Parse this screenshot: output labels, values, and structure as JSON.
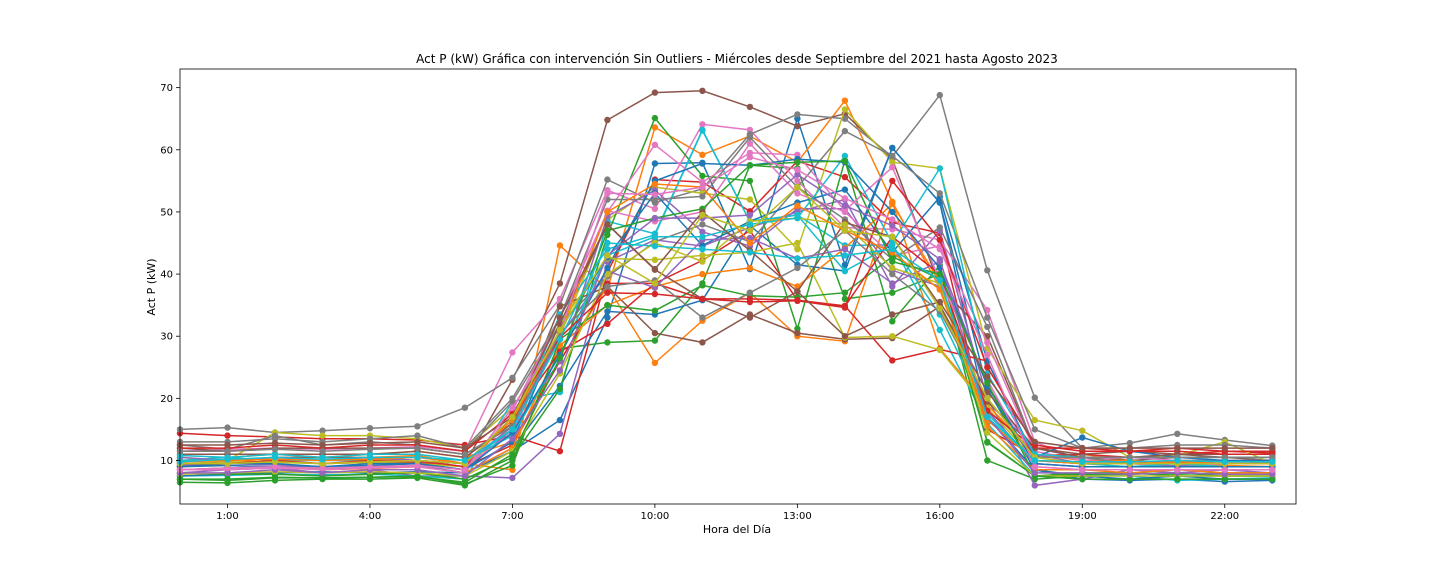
{
  "chart_data": {
    "type": "line",
    "title": "Act P (kW) Gráfica con intervención Sin Outliers - Miércoles desde Septiembre del 2021 hasta Agosto 2023",
    "xlabel": "Hora del Día",
    "ylabel": "Act P (kW)",
    "x": [
      0,
      1,
      2,
      3,
      4,
      5,
      6,
      7,
      8,
      9,
      10,
      11,
      12,
      13,
      14,
      15,
      16,
      17,
      18,
      19,
      20,
      21,
      22,
      23
    ],
    "xlim": [
      0,
      23.5
    ],
    "ylim": [
      3,
      73
    ],
    "x_ticks": [
      1,
      4,
      7,
      10,
      13,
      16,
      19,
      22
    ],
    "x_tick_labels": [
      "1:00",
      "4:00",
      "7:00",
      "10:00",
      "13:00",
      "16:00",
      "19:00",
      "22:00"
    ],
    "y_ticks": [
      10,
      20,
      30,
      40,
      50,
      60,
      70
    ],
    "y_tick_labels": [
      "10",
      "20",
      "30",
      "40",
      "50",
      "60",
      "70"
    ],
    "grid": false,
    "legend": "none",
    "marker": "circle",
    "palette": [
      "#1f77b4",
      "#ff7f0e",
      "#2ca02c",
      "#d62728",
      "#9467bd",
      "#8c564b",
      "#e377c2",
      "#7f7f7f",
      "#bcbd22",
      "#17becf"
    ],
    "series": [
      {
        "values": [
          8.5,
          8.8,
          9.0,
          8.7,
          8.9,
          9.2,
          8.0,
          11.5,
          16.5,
          33.0,
          57.8,
          57.9,
          40.8,
          65.0,
          41.5,
          60.3,
          51.5,
          17.0,
          8.5,
          7.0,
          6.8,
          7.0,
          6.6,
          6.8
        ]
      },
      {
        "values": [
          9.0,
          9.5,
          10.5,
          10.0,
          10.5,
          10.8,
          9.5,
          8.5,
          44.6,
          37.5,
          63.6,
          59.2,
          62.2,
          58.0,
          67.9,
          51.6,
          37.8,
          19.0,
          10.5,
          11.0,
          10.0,
          9.5,
          9.2,
          9.0
        ]
      },
      {
        "values": [
          6.5,
          6.4,
          6.8,
          7.0,
          7.0,
          7.2,
          6.0,
          10.0,
          28.0,
          29.0,
          29.3,
          38.5,
          57.5,
          57.0,
          36.0,
          37.0,
          40.0,
          10.0,
          7.0,
          7.5,
          8.0,
          7.5,
          7.5,
          7.5
        ]
      },
      {
        "values": [
          14.4,
          14.0,
          13.8,
          13.5,
          13.5,
          13.3,
          12.5,
          14.0,
          11.5,
          40.3,
          55.2,
          54.8,
          50.1,
          58.2,
          55.6,
          48.3,
          46.6,
          15.0,
          10.8,
          11.0,
          10.5,
          11.0,
          11.5,
          11.2
        ]
      },
      {
        "values": [
          8.0,
          8.5,
          8.8,
          8.0,
          8.5,
          7.5,
          7.5,
          7.2,
          14.3,
          42.0,
          45.5,
          44.5,
          47.5,
          50.0,
          52.0,
          38.0,
          47.0,
          20.0,
          6.0,
          7.0,
          8.5,
          8.0,
          8.5,
          8.0
        ]
      },
      {
        "values": [
          10.0,
          10.0,
          10.5,
          10.5,
          10.5,
          10.0,
          9.5,
          23.0,
          38.5,
          64.8,
          69.2,
          69.5,
          66.9,
          63.8,
          65.8,
          58.5,
          38.0,
          30.0,
          12.0,
          10.5,
          10.0,
          10.5,
          10.5,
          10.0
        ]
      },
      {
        "values": [
          11.5,
          11.8,
          12.0,
          11.8,
          12.0,
          12.2,
          11.5,
          27.4,
          36.0,
          53.5,
          50.5,
          64.1,
          63.2,
          55.0,
          47.5,
          47.2,
          45.5,
          34.2,
          13.0,
          10.0,
          9.5,
          9.0,
          9.5,
          9.5
        ]
      },
      {
        "values": [
          15.0,
          15.3,
          14.5,
          14.8,
          15.2,
          15.5,
          18.5,
          23.3,
          35.0,
          55.2,
          51.5,
          53.7,
          62.5,
          65.7,
          65.0,
          58.9,
          68.8,
          40.6,
          20.1,
          12.0,
          12.8,
          14.3,
          13.3,
          12.4
        ]
      },
      {
        "values": [
          10.5,
          10.0,
          14.5,
          14.0,
          14.0,
          13.5,
          12.0,
          18.5,
          30.0,
          48.7,
          54.0,
          53.0,
          52.0,
          44.0,
          66.5,
          58.0,
          57.0,
          28.0,
          16.5,
          14.8,
          10.5,
          10.8,
          13.0,
          9.5
        ]
      },
      {
        "values": [
          7.5,
          7.6,
          7.8,
          7.7,
          7.8,
          7.5,
          7.0,
          19.5,
          21.0,
          48.5,
          46.5,
          63.2,
          48.5,
          49.5,
          44.6,
          44.7,
          31.0,
          16.0,
          7.5,
          7.8,
          7.5,
          6.8,
          7.0,
          7.2
        ]
      },
      {
        "values": [
          7.5,
          7.8,
          8.0,
          8.2,
          8.0,
          8.2,
          8.0,
          12.0,
          22.0,
          34.0,
          33.5,
          35.8,
          47.8,
          41.5,
          40.5,
          60.3,
          51.5,
          21.5,
          8.5,
          7.5,
          7.0,
          7.5,
          7.0,
          7.0
        ]
      },
      {
        "values": [
          10.0,
          10.5,
          11.0,
          10.5,
          11.0,
          11.5,
          10.5,
          13.0,
          26.0,
          38.0,
          25.7,
          32.5,
          37.0,
          30.0,
          29.2,
          51.6,
          28.0,
          19.0,
          11.0,
          10.0,
          10.0,
          9.5,
          10.0,
          10.0
        ]
      },
      {
        "values": [
          8.0,
          7.8,
          7.8,
          7.5,
          7.8,
          8.0,
          7.0,
          10.5,
          21.5,
          46.3,
          65.1,
          55.8,
          55.0,
          31.2,
          58.3,
          32.4,
          41.4,
          12.9,
          7.5,
          8.0,
          8.0,
          7.8,
          8.0,
          8.0
        ]
      },
      {
        "values": [
          9.5,
          9.5,
          9.8,
          9.5,
          9.7,
          9.7,
          9.0,
          12.5,
          26.0,
          38.5,
          38.5,
          42.2,
          47.0,
          35.8,
          34.9,
          26.1,
          27.9,
          26.0,
          10.0,
          9.5,
          9.5,
          9.7,
          9.5,
          9.5
        ]
      },
      {
        "values": [
          9.2,
          9.5,
          9.3,
          9.0,
          9.2,
          9.5,
          8.5,
          15.0,
          26.0,
          49.3,
          53.5,
          46.8,
          44.5,
          50.5,
          50.5,
          40.6,
          38.0,
          18.0,
          9.5,
          9.0,
          9.0,
          9.2,
          9.0,
          9.0
        ]
      },
      {
        "values": [
          12.0,
          11.5,
          12.0,
          12.0,
          12.0,
          12.0,
          11.0,
          15.5,
          34.8,
          38.0,
          30.5,
          29.0,
          33.5,
          30.5,
          29.5,
          29.7,
          34.8,
          19.5,
          12.0,
          11.0,
          11.5,
          11.0,
          11.0,
          11.0
        ]
      },
      {
        "values": [
          10.0,
          10.0,
          10.5,
          10.0,
          10.5,
          10.0,
          9.0,
          14.5,
          30.5,
          50.2,
          48.5,
          50.0,
          61.0,
          53.0,
          50.0,
          43.0,
          44.5,
          29.0,
          11.5,
          10.0,
          10.5,
          10.0,
          10.0,
          10.0
        ]
      },
      {
        "values": [
          12.5,
          11.8,
          14.0,
          12.5,
          13.0,
          12.5,
          11.5,
          19.5,
          32.0,
          39.6,
          45.2,
          48.0,
          45.2,
          54.0,
          48.8,
          42.4,
          47.5,
          31.5,
          12.0,
          10.5,
          9.5,
          10.0,
          10.0,
          9.5
        ]
      },
      {
        "values": [
          9.5,
          9.8,
          9.7,
          9.5,
          9.7,
          9.5,
          9.0,
          15.5,
          32.0,
          42.5,
          42.3,
          43.0,
          43.5,
          45.0,
          29.8,
          30.0,
          27.8,
          18.5,
          10.0,
          9.5,
          9.5,
          9.5,
          9.0,
          9.0
        ]
      },
      {
        "values": [
          10.0,
          10.5,
          10.0,
          10.0,
          10.0,
          10.0,
          9.5,
          15.0,
          33.5,
          44.0,
          46.3,
          63.1,
          48.5,
          49.5,
          40.5,
          44.7,
          33.5,
          17.5,
          10.0,
          9.5,
          9.0,
          9.5,
          9.0,
          9.0
        ]
      },
      {
        "values": [
          9.0,
          9.5,
          9.5,
          9.0,
          9.5,
          9.5,
          8.5,
          13.0,
          31.0,
          42.7,
          53.0,
          44.6,
          48.5,
          51.5,
          53.6,
          43.5,
          52.4,
          26.0,
          10.5,
          13.7,
          11.5,
          10.5,
          10.0,
          10.0
        ]
      },
      {
        "values": [
          8.5,
          8.8,
          9.0,
          8.5,
          8.7,
          9.0,
          8.0,
          12.0,
          28.5,
          35.0,
          38.0,
          40.0,
          41.0,
          38.0,
          44.2,
          51.3,
          38.7,
          15.5,
          8.5,
          8.5,
          8.0,
          8.5,
          8.0,
          8.0
        ]
      },
      {
        "values": [
          7.0,
          6.8,
          7.2,
          7.2,
          7.3,
          7.5,
          6.2,
          9.2,
          29.5,
          35.0,
          34.1,
          38.2,
          36.5,
          36.3,
          37.0,
          42.8,
          39.2,
          13.0,
          7.5,
          7.8,
          7.8,
          8.0,
          7.5,
          7.5
        ]
      },
      {
        "values": [
          9.5,
          9.5,
          10.0,
          9.5,
          10.0,
          10.0,
          9.0,
          17.0,
          27.5,
          32.0,
          38.5,
          36.0,
          36.0,
          35.8,
          34.8,
          46.0,
          40.0,
          18.0,
          12.0,
          12.0,
          11.5,
          11.5,
          11.0,
          11.0
        ]
      },
      {
        "values": [
          10.5,
          10.0,
          10.5,
          10.0,
          10.5,
          10.0,
          9.5,
          15.5,
          30.0,
          40.5,
          37.8,
          45.5,
          45.8,
          42.5,
          44.0,
          38.5,
          42.0,
          22.0,
          11.0,
          9.5,
          9.5,
          10.0,
          9.5,
          9.5
        ]
      },
      {
        "values": [
          11.0,
          11.0,
          11.0,
          11.0,
          11.0,
          11.5,
          10.5,
          16.0,
          32.0,
          48.0,
          40.7,
          36.0,
          33.0,
          37.2,
          48.3,
          46.0,
          35.0,
          21.0,
          12.0,
          10.5,
          10.5,
          11.0,
          10.5,
          10.5
        ]
      },
      {
        "values": [
          8.5,
          8.5,
          8.8,
          8.5,
          8.8,
          9.0,
          8.0,
          18.0,
          33.0,
          50.0,
          60.8,
          54.8,
          59.5,
          59.2,
          50.2,
          57.2,
          39.0,
          23.0,
          9.0,
          8.5,
          8.5,
          8.5,
          8.5,
          8.5
        ]
      },
      {
        "values": [
          13.0,
          13.0,
          13.5,
          13.0,
          13.5,
          14.0,
          12.0,
          20.0,
          33.0,
          52.0,
          52.0,
          52.5,
          62.0,
          54.0,
          63.0,
          59.0,
          53.0,
          33.0,
          15.0,
          12.0,
          12.0,
          12.5,
          12.5,
          12.0
        ]
      },
      {
        "values": [
          7.8,
          8.0,
          8.2,
          8.0,
          8.2,
          8.0,
          7.5,
          11.5,
          24.0,
          40.0,
          45.0,
          42.0,
          48.5,
          49.0,
          48.0,
          41.0,
          38.5,
          14.5,
          7.5,
          7.5,
          7.5,
          7.5,
          7.5,
          7.5
        ]
      },
      {
        "values": [
          10.8,
          10.5,
          11.0,
          10.5,
          11.0,
          11.0,
          10.0,
          14.0,
          27.0,
          43.0,
          46.0,
          46.0,
          48.0,
          49.0,
          59.0,
          45.0,
          57.0,
          24.0,
          11.0,
          10.5,
          10.5,
          10.5,
          10.5,
          10.5
        ]
      },
      {
        "values": [
          9.0,
          9.2,
          9.0,
          9.0,
          9.2,
          9.5,
          8.5,
          14.5,
          27.0,
          41.0,
          55.0,
          57.8,
          57.5,
          58.5,
          58.0,
          50.0,
          41.0,
          22.0,
          9.5,
          9.0,
          9.0,
          9.0,
          9.0,
          9.0
        ]
      },
      {
        "values": [
          9.8,
          10.0,
          10.2,
          10.0,
          10.2,
          10.5,
          9.5,
          16.5,
          30.5,
          50.0,
          54.5,
          54.0,
          45.0,
          51.0,
          47.0,
          43.5,
          37.5,
          16.5,
          10.0,
          9.5,
          9.5,
          9.8,
          9.5,
          9.5
        ]
      },
      {
        "values": [
          7.0,
          7.0,
          7.3,
          7.2,
          7.3,
          7.4,
          6.5,
          11.0,
          26.5,
          47.0,
          49.0,
          50.5,
          57.5,
          58.0,
          58.2,
          42.0,
          40.0,
          22.5,
          7.5,
          7.0,
          7.0,
          7.0,
          7.0,
          7.0
        ]
      },
      {
        "values": [
          12.0,
          12.0,
          12.5,
          12.0,
          12.5,
          12.5,
          11.5,
          17.5,
          29.8,
          37.0,
          36.8,
          36.0,
          35.5,
          35.7,
          34.6,
          55.0,
          45.5,
          25.0,
          12.5,
          11.5,
          11.5,
          12.0,
          11.5,
          11.5
        ]
      },
      {
        "values": [
          8.0,
          8.0,
          8.5,
          8.0,
          8.5,
          8.5,
          7.5,
          13.5,
          24.5,
          43.0,
          49.0,
          49.0,
          49.5,
          56.0,
          51.0,
          47.8,
          42.4,
          17.0,
          8.0,
          8.0,
          7.8,
          8.0,
          7.8,
          7.8
        ]
      },
      {
        "values": [
          12.5,
          12.5,
          12.8,
          12.5,
          12.8,
          13.0,
          12.0,
          17.0,
          33.0,
          48.0,
          40.8,
          50.0,
          43.8,
          37.2,
          30.0,
          33.5,
          35.5,
          23.5,
          13.0,
          12.0,
          12.0,
          12.0,
          12.0,
          12.0
        ]
      },
      {
        "values": [
          8.5,
          8.8,
          9.0,
          8.8,
          9.0,
          9.2,
          8.5,
          18.5,
          30.5,
          53.0,
          52.8,
          54.0,
          58.8,
          56.8,
          52.2,
          48.8,
          44.0,
          27.0,
          9.0,
          8.5,
          8.5,
          8.5,
          8.5,
          8.5
        ]
      },
      {
        "values": [
          11.5,
          11.5,
          11.8,
          11.5,
          11.8,
          12.0,
          11.0,
          15.5,
          30.5,
          38.0,
          39.0,
          33.0,
          37.0,
          41.0,
          47.0,
          40.0,
          34.0,
          20.0,
          10.5,
          10.5,
          10.5,
          10.5,
          10.5,
          10.5
        ]
      },
      {
        "values": [
          9.5,
          9.5,
          9.8,
          9.5,
          9.8,
          10.0,
          9.5,
          17.0,
          31.0,
          43.0,
          38.5,
          49.5,
          47.0,
          54.0,
          47.0,
          46.0,
          34.5,
          20.0,
          10.5,
          9.5,
          9.5,
          9.5,
          9.5,
          9.5
        ]
      },
      {
        "values": [
          9.8,
          10.2,
          10.5,
          10.2,
          10.5,
          10.5,
          10.0,
          15.0,
          29.5,
          45.0,
          44.5,
          44.0,
          43.5,
          42.5,
          43.0,
          44.0,
          39.0,
          17.0,
          10.0,
          9.8,
          9.8,
          10.0,
          9.8,
          9.8
        ]
      }
    ]
  }
}
